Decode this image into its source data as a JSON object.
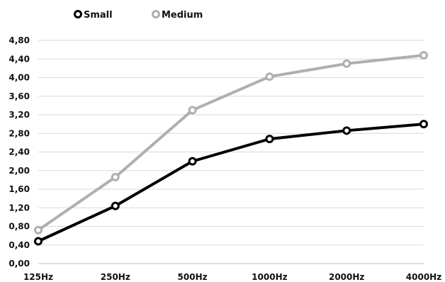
{
  "chart_data": {
    "type": "line",
    "title": "",
    "xlabel": "",
    "ylabel": "",
    "categories": [
      "125Hz",
      "250Hz",
      "500Hz",
      "1000Hz",
      "2000Hz",
      "4000Hz"
    ],
    "ylim": [
      0,
      4.8
    ],
    "yticks": [
      "0,00",
      "0,40",
      "0,80",
      "1,20",
      "1,60",
      "2,00",
      "2,40",
      "2,80",
      "3,20",
      "3,60",
      "4,00",
      "4,40",
      "4,80"
    ],
    "grid": true,
    "legend_position": "top-left",
    "series": [
      {
        "name": "Small",
        "color": "#000000",
        "values": [
          0.48,
          1.24,
          2.2,
          2.68,
          2.86,
          3.0
        ]
      },
      {
        "name": "Medium",
        "color": "#b3aeaa",
        "values": [
          0.72,
          1.86,
          3.3,
          4.02,
          4.3,
          4.48
        ]
      }
    ]
  }
}
